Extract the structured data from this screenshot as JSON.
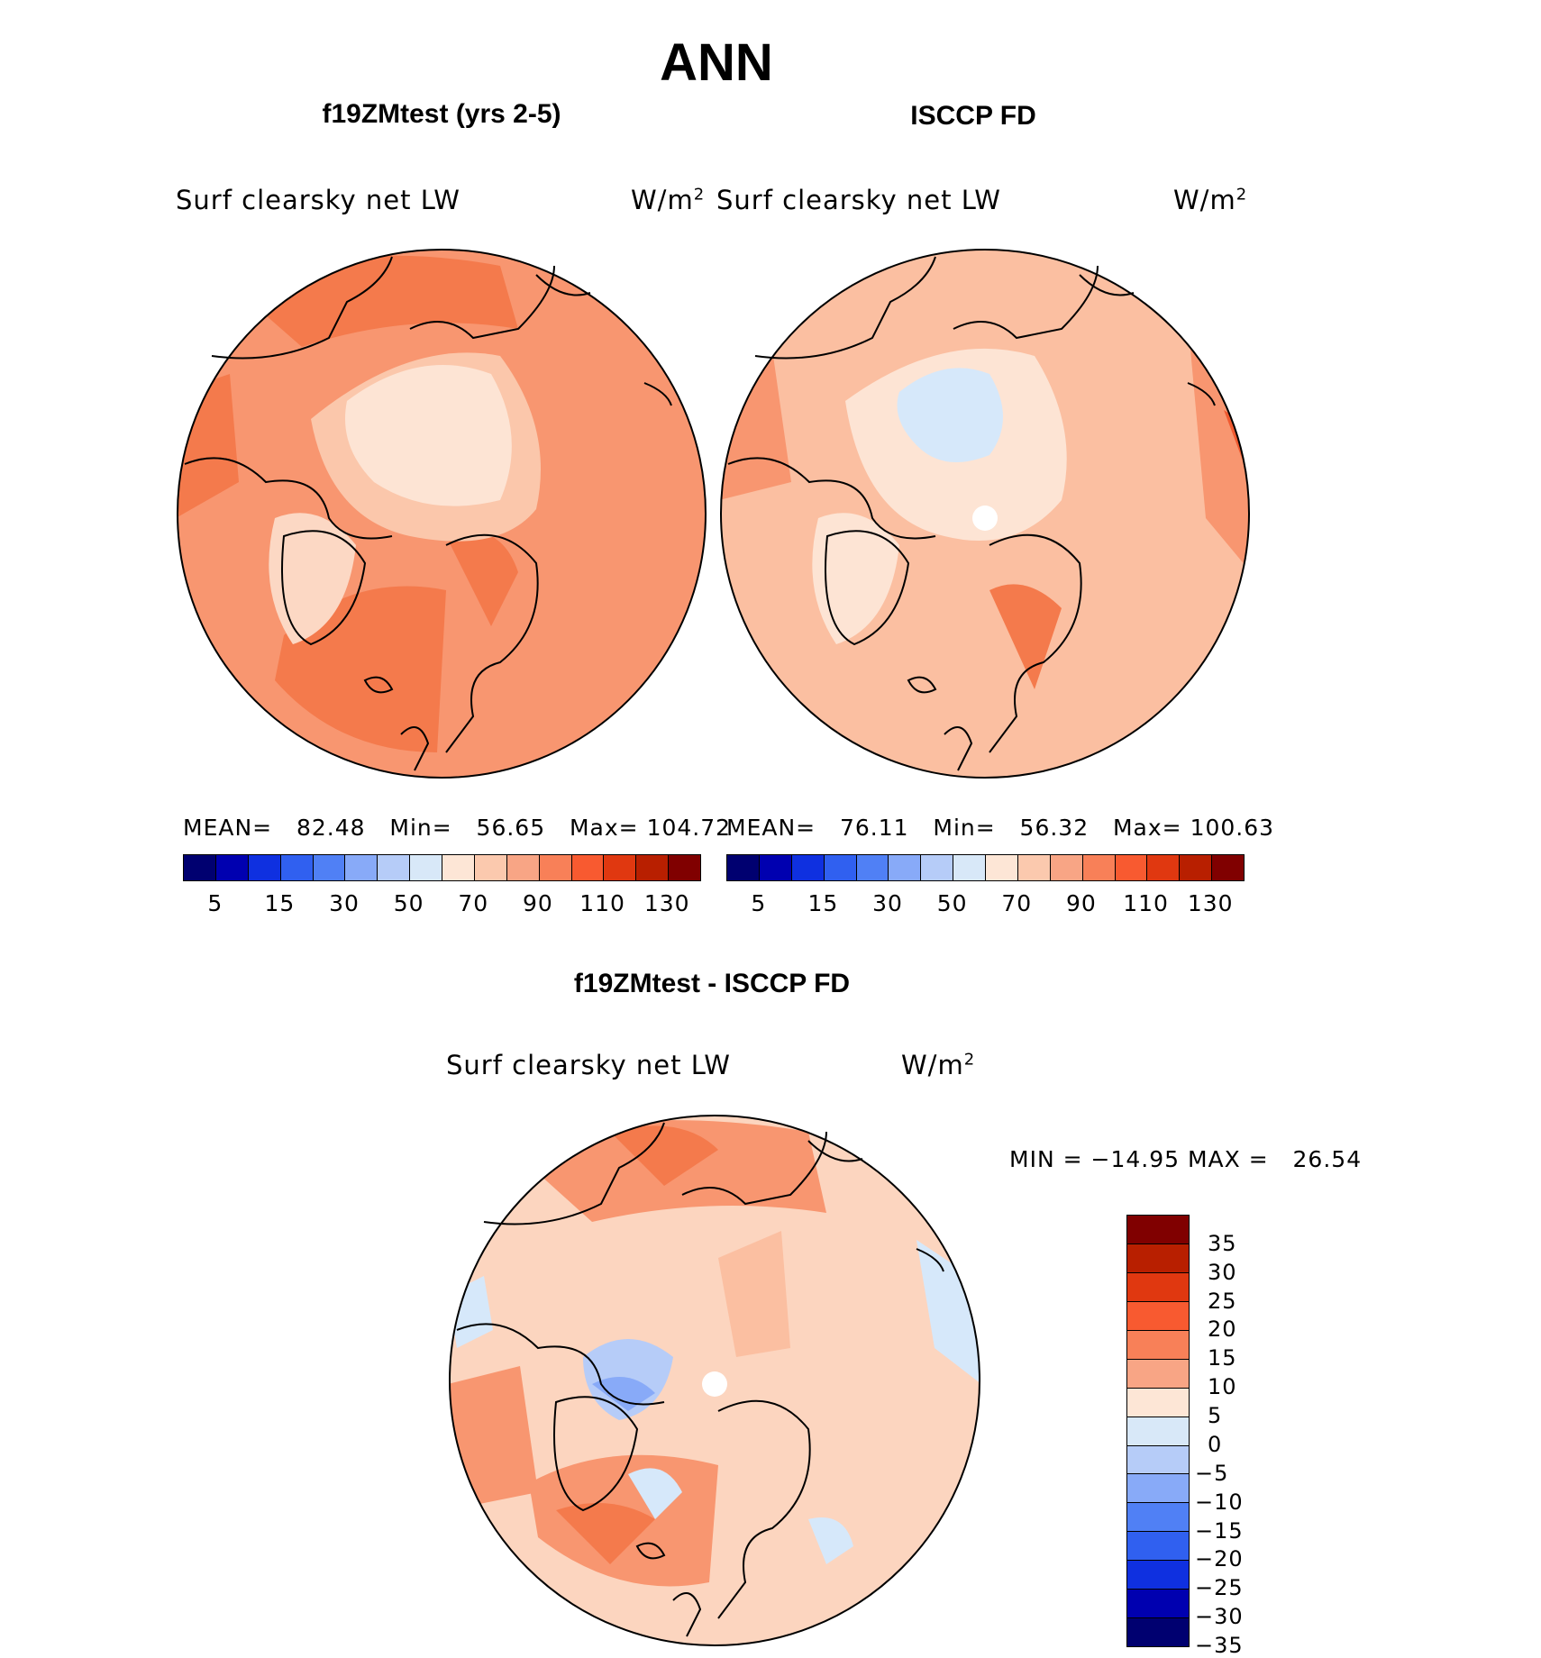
{
  "title": "ANN",
  "panels": [
    {
      "heading": "f19ZMtest (yrs 2-5)",
      "variable": "Surf clearsky net LW",
      "units": "W/m",
      "units_sup": "2",
      "mean_label": "MEAN=",
      "mean": "82.48",
      "min_label": "Min=",
      "min": "56.65",
      "max_label": "Max=",
      "max": "104.72",
      "base_color": "#f89670"
    },
    {
      "heading": "ISCCP FD",
      "variable": "Surf clearsky net LW",
      "units": "W/m",
      "units_sup": "2",
      "mean_label": "MEAN=",
      "mean": "76.11",
      "min_label": "Min=",
      "min": "56.32",
      "max_label": "Max=",
      "max": "100.63",
      "base_color": "#fbbfa1"
    }
  ],
  "colorbar_top": {
    "colors": [
      "#000070",
      "#0000b0",
      "#0f30e0",
      "#3060f0",
      "#5080f5",
      "#88aaf8",
      "#b6ccf8",
      "#d8e8f8",
      "#fde6d6",
      "#fbc9ae",
      "#f8a585",
      "#f88058",
      "#f85a30",
      "#e03810",
      "#b81f00",
      "#800000"
    ],
    "ticks": [
      "5",
      "15",
      "30",
      "50",
      "70",
      "90",
      "110",
      "130"
    ]
  },
  "diff_panel": {
    "heading": "f19ZMtest - ISCCP FD",
    "variable": "Surf clearsky net LW",
    "units": "W/m",
    "units_sup": "2",
    "min_label": "MIN =",
    "min": "−14.95",
    "max_label": "MAX =",
    "max": "26.54",
    "base_color": "#fcd5bf"
  },
  "colorbar_diff": {
    "colors": [
      "#800000",
      "#b81f00",
      "#e03810",
      "#f85a30",
      "#f88058",
      "#f8a585",
      "#fde6d6",
      "#d8e8f8",
      "#b6ccf8",
      "#88aaf8",
      "#5080f5",
      "#3060f0",
      "#0f30e0",
      "#0000b0",
      "#000070"
    ],
    "ticks": [
      "35",
      "30",
      "25",
      "20",
      "15",
      "10",
      "5",
      "0",
      "−5",
      "−10",
      "−15",
      "−20",
      "−25",
      "−30",
      "−35"
    ]
  }
}
